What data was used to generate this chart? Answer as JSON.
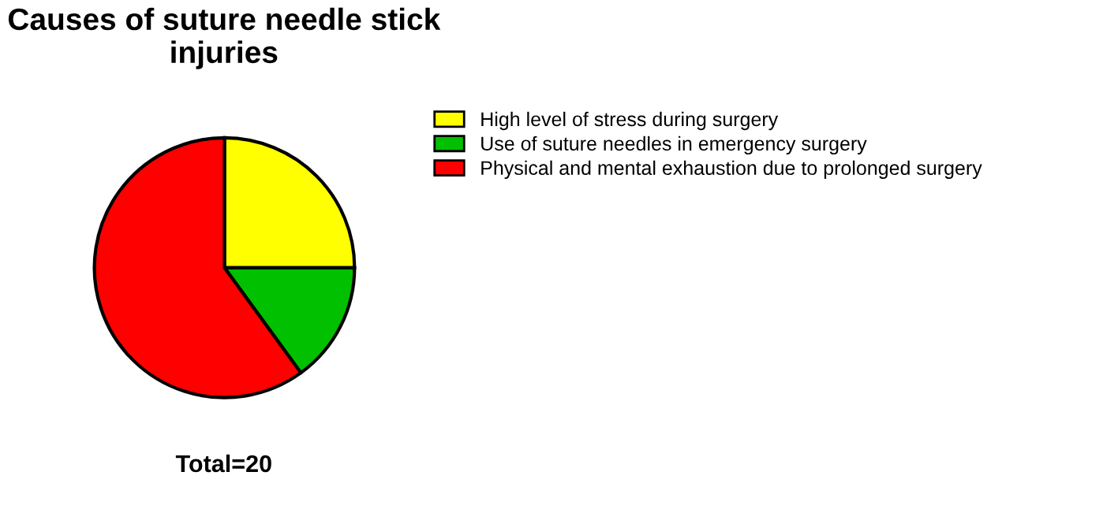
{
  "chart_data": {
    "type": "pie",
    "title": "Causes of suture needle stick injuries",
    "categories": [
      "High level of stress during surgery",
      "Use of suture needles in emergency surgery",
      "Physical and mental exhaustion due to prolonged surgery"
    ],
    "values": [
      25,
      15,
      60
    ],
    "colors": [
      "#ffff00",
      "#00c000",
      "#ff0000"
    ],
    "legend": "right",
    "annotations": [
      "Total=20"
    ]
  }
}
